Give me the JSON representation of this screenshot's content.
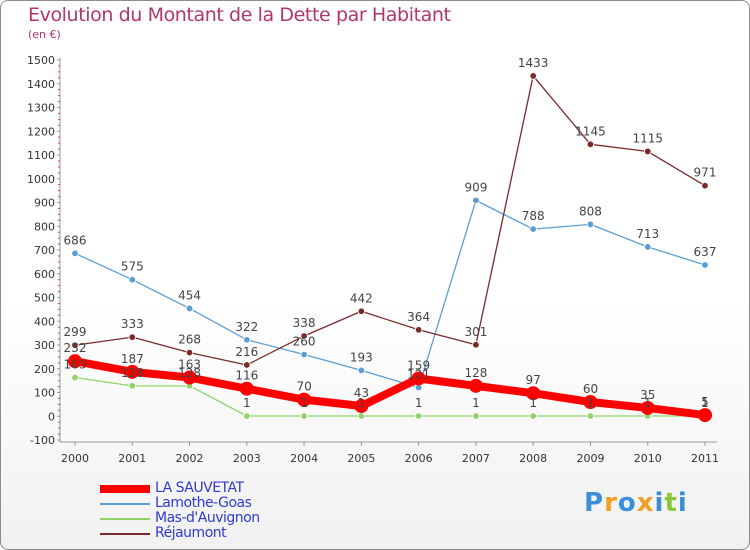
{
  "header": {
    "title": "Evolution du Montant de la Dette par Habitant",
    "subtitle": "(en €)"
  },
  "logo": {
    "letters": [
      "P",
      "r",
      "o",
      "x",
      "i",
      "t",
      "i"
    ],
    "colors": [
      "#3a8fd8",
      "#f0a020",
      "#3a8fd8",
      "#f0a020",
      "#3a8fd8",
      "#8cc43c",
      "#3a8fd8"
    ]
  },
  "chart_data": {
    "type": "line",
    "title": "Evolution du Montant de la Dette par Habitant",
    "subtitle": "(en €)",
    "xlabel": "",
    "ylabel": "",
    "x": [
      "2000",
      "2001",
      "2002",
      "2003",
      "2004",
      "2005",
      "2006",
      "2007",
      "2008",
      "2009",
      "2010",
      "2011"
    ],
    "ylim": [
      -100,
      1500
    ],
    "yticks": [
      -100,
      0,
      100,
      200,
      300,
      400,
      500,
      600,
      700,
      800,
      900,
      1000,
      1100,
      1200,
      1300,
      1400,
      1500
    ],
    "grid": false,
    "legend_position": "bottom-left",
    "series": [
      {
        "name": "LA SAUVETAT",
        "color": "#ff0000",
        "emphasis": true,
        "values": [
          232,
          187,
          163,
          116,
          70,
          43,
          159,
          128,
          97,
          60,
          35,
          5
        ],
        "labels": [
          "232",
          "187",
          "163",
          "116",
          "70",
          "43",
          "159",
          "128",
          "97",
          "60",
          "35",
          "5"
        ]
      },
      {
        "name": "Lamothe-Goas",
        "color": "#5a9fd4",
        "values": [
          686,
          575,
          454,
          322,
          260,
          193,
          121,
          909,
          788,
          808,
          713,
          637
        ],
        "labels": [
          "686",
          "575",
          "454",
          "322",
          "260",
          "193",
          "121",
          "909",
          "788",
          "808",
          "713",
          "637"
        ]
      },
      {
        "name": "Mas-d'Auvignon",
        "color": "#8fd36a",
        "values": [
          163,
          128,
          128,
          1,
          1,
          1,
          1,
          1,
          1,
          1,
          1,
          1
        ],
        "labels": [
          "163",
          "128",
          "128",
          "1",
          "1",
          "1",
          "1",
          "1",
          "1",
          "1",
          "1",
          "1"
        ]
      },
      {
        "name": "Réjaumont",
        "color": "#7b2a2a",
        "values": [
          299,
          333,
          268,
          216,
          338,
          442,
          364,
          301,
          1433,
          1145,
          1115,
          971
        ],
        "labels": [
          "299",
          "333",
          "268",
          "216",
          "338",
          "442",
          "364",
          "301",
          "1433",
          "1145",
          "1115",
          "971"
        ]
      }
    ]
  }
}
